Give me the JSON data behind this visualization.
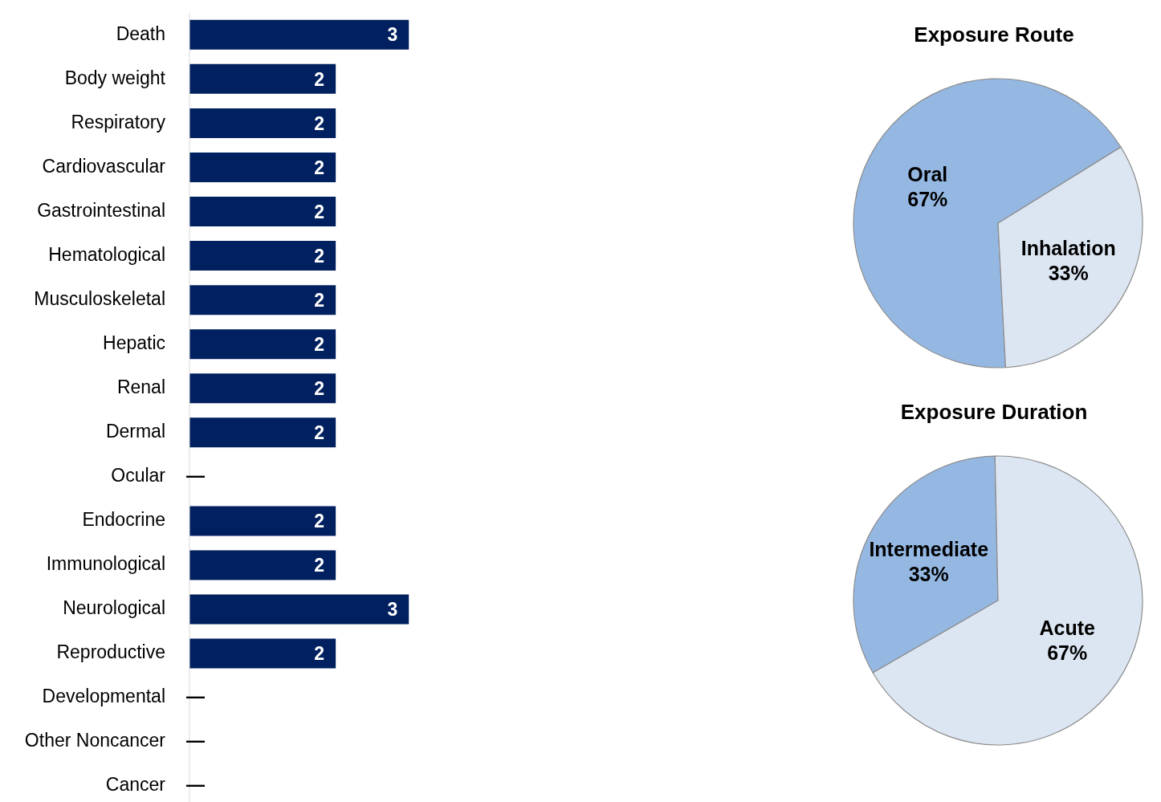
{
  "chart_data": [
    {
      "type": "bar",
      "orientation": "horizontal",
      "categories": [
        "Death",
        "Body weight",
        "Respiratory",
        "Cardiovascular",
        "Gastrointestinal",
        "Hematological",
        "Musculoskeletal",
        "Hepatic",
        "Renal",
        "Dermal",
        "Ocular",
        "Endocrine",
        "Immunological",
        "Neurological",
        "Reproductive",
        "Developmental",
        "Other Noncancer",
        "Cancer"
      ],
      "values": [
        3,
        2,
        2,
        2,
        2,
        2,
        2,
        2,
        2,
        2,
        null,
        2,
        2,
        3,
        2,
        null,
        null,
        null
      ],
      "value_labels": [
        "3",
        "2",
        "2",
        "2",
        "2",
        "2",
        "2",
        "2",
        "2",
        "2",
        "—",
        "2",
        "2",
        "3",
        "2",
        "—",
        "—",
        "—"
      ],
      "color": "#002060",
      "legend": false
    },
    {
      "type": "pie",
      "title": "Exposure Route",
      "categories": [
        "Oral",
        "Inhalation"
      ],
      "values": [
        67,
        33
      ],
      "value_labels": [
        "67%",
        "33%"
      ],
      "colors": [
        "#95b8e3",
        "#dce6f2"
      ],
      "legend": false
    },
    {
      "type": "pie",
      "title": "Exposure Duration",
      "categories": [
        "Intermediate",
        "Acute"
      ],
      "values": [
        33,
        67
      ],
      "value_labels": [
        "33%",
        "67%"
      ],
      "colors": [
        "#95b8e3",
        "#dce6f2"
      ],
      "legend": false
    }
  ]
}
